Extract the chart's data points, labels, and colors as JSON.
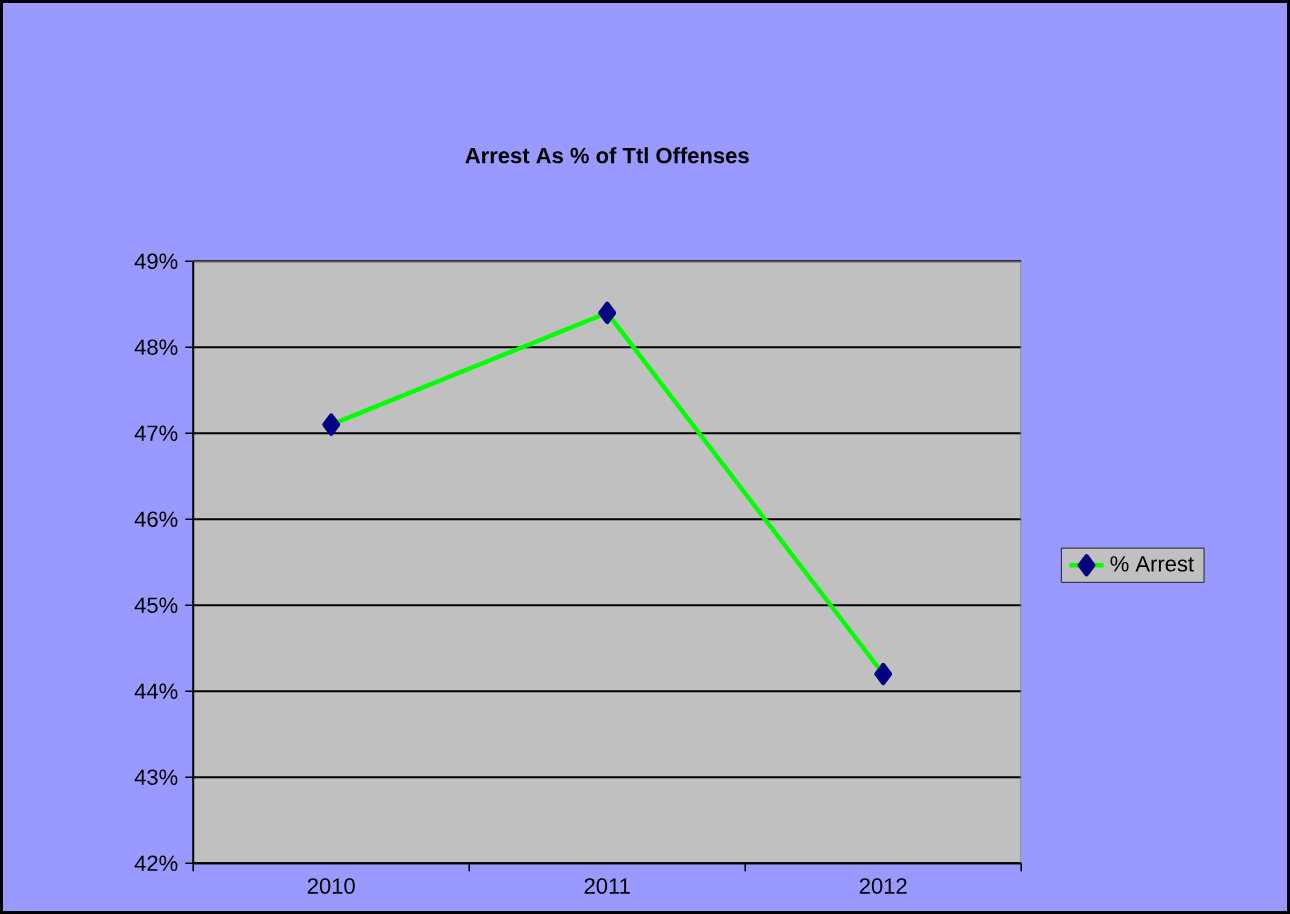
{
  "chart_data": {
    "type": "line",
    "title": "Arrest As % of Ttl Offenses",
    "categories": [
      "2010",
      "2011",
      "2012"
    ],
    "series": [
      {
        "name": "% Arrest",
        "color": "#00ff00",
        "values": [
          47.1,
          48.4,
          44.2
        ]
      }
    ],
    "ylim": [
      42,
      49
    ],
    "yticks": [
      {
        "value": 42,
        "label": "42%"
      },
      {
        "value": 43,
        "label": "43%"
      },
      {
        "value": 44,
        "label": "44%"
      },
      {
        "value": 45,
        "label": "45%"
      },
      {
        "value": 46,
        "label": "46%"
      },
      {
        "value": 47,
        "label": "47%"
      },
      {
        "value": 48,
        "label": "48%"
      },
      {
        "value": 49,
        "label": "49%"
      }
    ],
    "grid": "y",
    "legend": "right",
    "marker": "diamond",
    "line_style": "solid"
  }
}
